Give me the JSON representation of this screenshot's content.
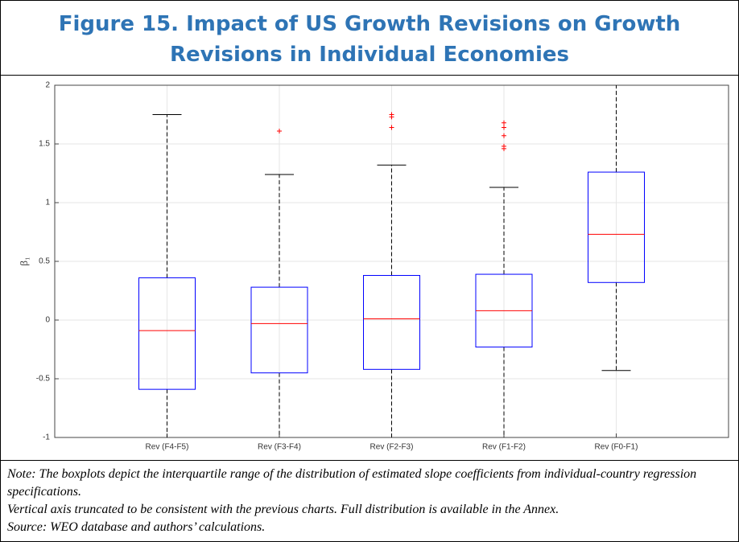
{
  "chart_data": {
    "type": "boxplot",
    "title": "Figure 15. Impact of US Growth Revisions on Growth Revisions in Individual Economies",
    "ylabel": "β₁",
    "categories": [
      "Rev (F4-F5)",
      "Rev (F3-F4)",
      "Rev (F2-F3)",
      "Rev (F1-F2)",
      "Rev (F0-F1)"
    ],
    "boxes": [
      {
        "whisker_low": null,
        "q1": -0.59,
        "median": -0.09,
        "q3": 0.36,
        "whisker_high": 1.75,
        "outliers": []
      },
      {
        "whisker_low": null,
        "q1": -0.45,
        "median": -0.03,
        "q3": 0.28,
        "whisker_high": 1.24,
        "outliers": [
          1.61
        ]
      },
      {
        "whisker_low": null,
        "q1": -0.42,
        "median": 0.01,
        "q3": 0.38,
        "whisker_high": 1.32,
        "outliers": [
          1.75,
          1.73,
          1.64
        ]
      },
      {
        "whisker_low": null,
        "q1": -0.23,
        "median": 0.08,
        "q3": 0.39,
        "whisker_high": 1.13,
        "outliers": [
          1.68,
          1.64,
          1.57,
          1.48,
          1.46
        ]
      },
      {
        "whisker_low": -0.43,
        "q1": 0.32,
        "median": 0.73,
        "q3": 1.26,
        "whisker_high": null,
        "outliers": []
      }
    ],
    "box_color": "#0000ff",
    "median_color": "#ff0000",
    "outlier_color": "#ff0000",
    "ylim": [
      -1,
      2
    ],
    "yticks": [
      -1,
      -0.5,
      0,
      0.5,
      1,
      1.5,
      2
    ],
    "grid": true,
    "notes": [
      "Note: The boxplots depict the interquartile range of the distribution of estimated slope coefficients from individual-country regression specifications.",
      "Vertical axis truncated to be consistent with the previous charts. Full distribution is available in the Annex.",
      "Source: WEO database and authors’ calculations."
    ]
  }
}
